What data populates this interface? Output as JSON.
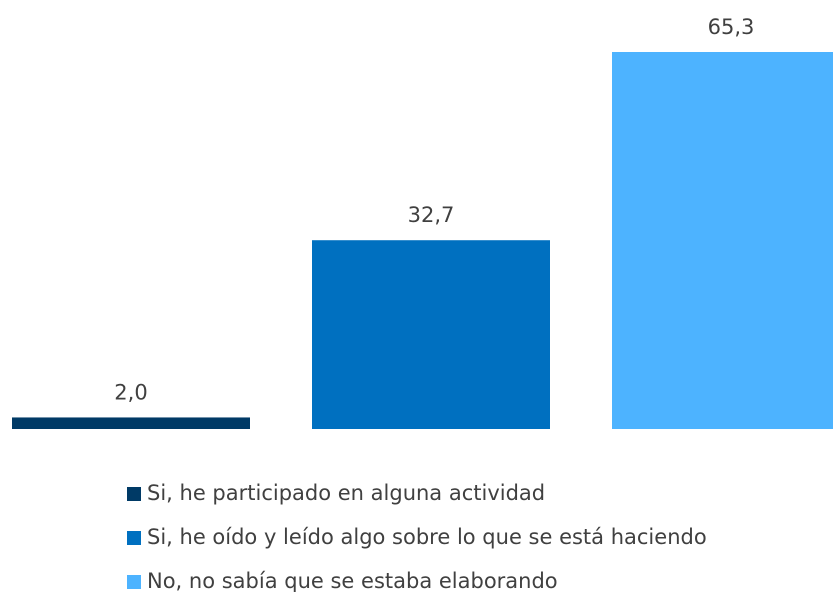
{
  "chart_data": {
    "type": "bar",
    "categories": [
      null
    ],
    "series": [
      {
        "name": "Si, he participado en alguna actividad",
        "color": "#003a66",
        "values": [
          2.0
        ],
        "value_labels": [
          "2,0"
        ]
      },
      {
        "name": "Si, he oído y leído algo sobre lo que se está haciendo",
        "color": "#0070c0",
        "values": [
          32.7
        ],
        "value_labels": [
          "32,7"
        ]
      },
      {
        "name": "No, no sabía que se estaba elaborando",
        "color": "#4db3ff",
        "values": [
          65.3
        ],
        "value_labels": [
          "65,3"
        ]
      }
    ]
  }
}
